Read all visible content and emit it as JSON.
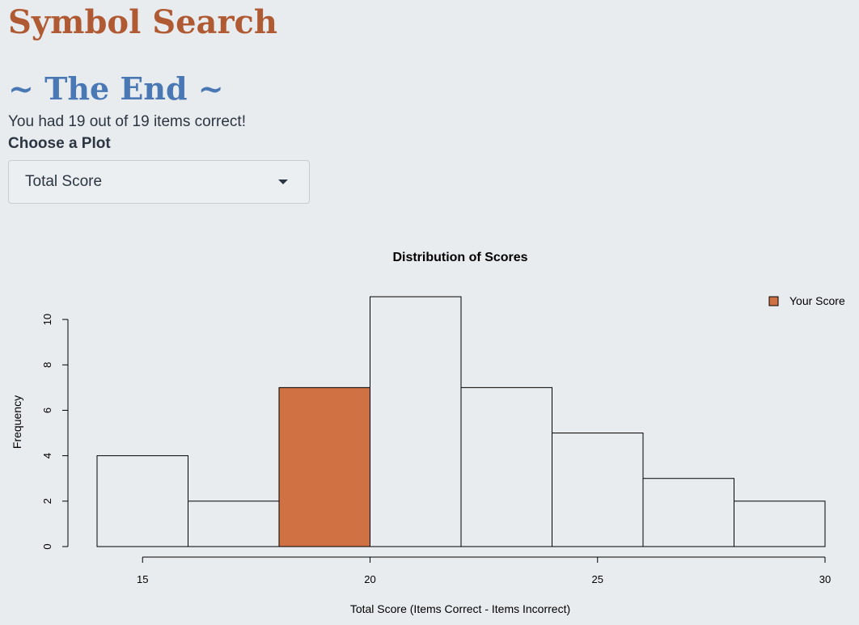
{
  "app": {
    "title": "Symbol Search"
  },
  "results": {
    "heading": "~ The End ~",
    "summary": "You had 19 out of 19 items correct!"
  },
  "plot_select": {
    "label": "Choose a Plot",
    "selected": "Total Score"
  },
  "colors": {
    "title": "#b05a34",
    "heading": "#4a78b4",
    "highlight_bar": "#d07143",
    "bar_fill": "#e9ecef",
    "background": "#e9ecef"
  },
  "chart_data": {
    "type": "bar",
    "title": "Distribution of Scores",
    "xlabel": "Total Score (Items Correct - Items Incorrect)",
    "ylabel": "Frequency",
    "xlim": [
      14,
      30
    ],
    "ylim": [
      0,
      11
    ],
    "x_ticks": [
      15,
      20,
      25,
      30
    ],
    "y_ticks": [
      0,
      2,
      4,
      6,
      8,
      10
    ],
    "bins": [
      {
        "from": 14,
        "to": 16,
        "count": 4
      },
      {
        "from": 16,
        "to": 18,
        "count": 2
      },
      {
        "from": 18,
        "to": 20,
        "count": 7,
        "highlight": true
      },
      {
        "from": 20,
        "to": 22,
        "count": 11
      },
      {
        "from": 22,
        "to": 24,
        "count": 7
      },
      {
        "from": 24,
        "to": 26,
        "count": 5
      },
      {
        "from": 26,
        "to": 28,
        "count": 3
      },
      {
        "from": 28,
        "to": 30,
        "count": 2
      }
    ],
    "legend": {
      "label": "Your Score",
      "position": "top-right"
    }
  }
}
